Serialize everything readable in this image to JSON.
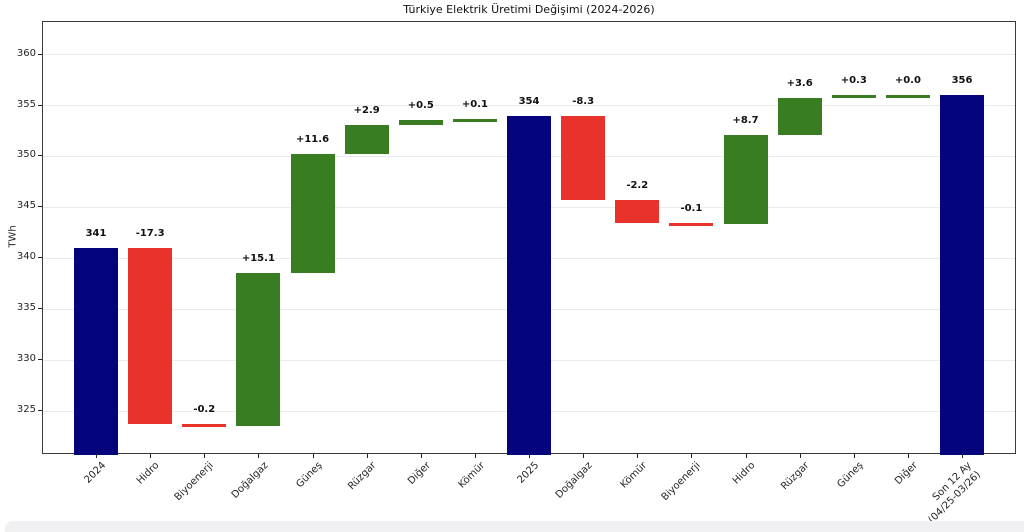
{
  "chart_data": {
    "type": "bar",
    "subtype": "waterfall",
    "title": "Türkiye Elektrik Üretimi Değişimi (2024-2026)",
    "xlabel": "",
    "ylabel": "TWh",
    "yticks": [
      325,
      330,
      335,
      340,
      345,
      350,
      355,
      360
    ],
    "ylim": [
      320.7,
      363.2
    ],
    "grid": "horizontal",
    "legend": "none",
    "steps": [
      {
        "category": "2024",
        "label": "341",
        "value": 341,
        "kind": "total"
      },
      {
        "category": "Hidro",
        "label": "-17.3",
        "value": -17.3,
        "kind": "decrease"
      },
      {
        "category": "Biyoenerji",
        "label": "-0.2",
        "value": -0.2,
        "kind": "decrease"
      },
      {
        "category": "Doğalgaz",
        "label": "+15.1",
        "value": 15.1,
        "kind": "increase"
      },
      {
        "category": "Güneş",
        "label": "+11.6",
        "value": 11.6,
        "kind": "increase"
      },
      {
        "category": "Rüzgar",
        "label": "+2.9",
        "value": 2.9,
        "kind": "increase"
      },
      {
        "category": "Diğer",
        "label": "+0.5",
        "value": 0.5,
        "kind": "increase"
      },
      {
        "category": "Kömür",
        "label": "+0.1",
        "value": 0.1,
        "kind": "increase"
      },
      {
        "category": "2025",
        "label": "354",
        "value": 354,
        "kind": "total"
      },
      {
        "category": "Doğalgaz",
        "label": "-8.3",
        "value": -8.3,
        "kind": "decrease"
      },
      {
        "category": "Kömür",
        "label": "-2.2",
        "value": -2.2,
        "kind": "decrease"
      },
      {
        "category": "Biyoenerji",
        "label": "-0.1",
        "value": -0.1,
        "kind": "decrease"
      },
      {
        "category": "Hidro",
        "label": "+8.7",
        "value": 8.7,
        "kind": "increase"
      },
      {
        "category": "Rüzgar",
        "label": "+3.6",
        "value": 3.6,
        "kind": "increase"
      },
      {
        "category": "Güneş",
        "label": "+0.3",
        "value": 0.3,
        "kind": "increase"
      },
      {
        "category": "Diğer",
        "label": "+0.0",
        "value": 0.0,
        "kind": "increase"
      },
      {
        "category": "Son 12 Ay\n(04/25-03/26)",
        "label": "356",
        "value": 356,
        "kind": "total"
      }
    ]
  },
  "colors": {
    "total": "#04047c",
    "increase": "#397d22",
    "decrease": "#e9332a",
    "grid": "#ebebeb",
    "axis": "#3a3a3a",
    "text": "#111111",
    "bottom_strip": "#f0f0f2"
  }
}
